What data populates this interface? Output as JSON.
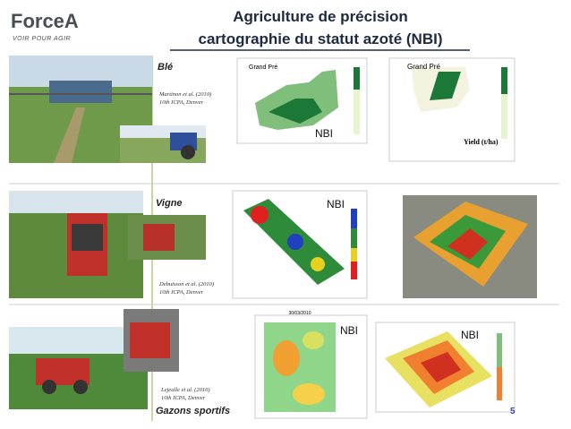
{
  "logo": {
    "name": "ForceA",
    "tagline": "VOIR POUR AGIR"
  },
  "header": {
    "title_line1": "Agriculture de précision",
    "title_line2": "cartographie du statut azoté (NBI)"
  },
  "rows": [
    {
      "label": "Blé",
      "citation": "Martinon et al. (2010)",
      "conference": "10th ICPA, Denver",
      "map1_title": "Grand Pré",
      "map1_label": "NBI",
      "map2_title": "Grand Pré",
      "map2_label": "Yield (t/ha)"
    },
    {
      "label": "Vigne",
      "citation": "Debuisson et al. (2010)",
      "conference": "10th ICPA, Denver",
      "map1_label": "NBI"
    },
    {
      "label": "Gazons sportifs",
      "citation": "Lejealle et al. (2010)",
      "conference": "10th ICPA, Denver",
      "map1_date": "30/03/2010",
      "map1_label": "NBI",
      "map2_label": "NBI"
    }
  ],
  "page_number": "5"
}
